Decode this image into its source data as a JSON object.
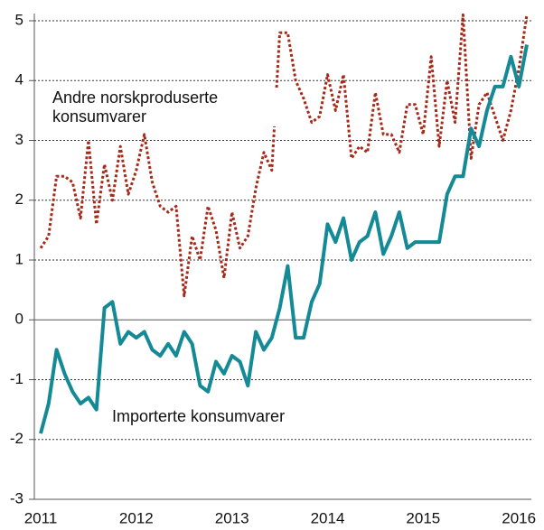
{
  "chart_data": {
    "type": "line",
    "categories": [
      "2011",
      null,
      null,
      null,
      null,
      null,
      null,
      null,
      null,
      null,
      null,
      null,
      "2012",
      null,
      null,
      null,
      null,
      null,
      null,
      null,
      null,
      null,
      null,
      null,
      "2013",
      null,
      null,
      null,
      null,
      null,
      null,
      null,
      null,
      null,
      null,
      null,
      "2014",
      null,
      null,
      null,
      null,
      null,
      null,
      null,
      null,
      null,
      null,
      null,
      "2015",
      null,
      null,
      null,
      null,
      null,
      null,
      null,
      null,
      null,
      null,
      null,
      "2016",
      null
    ],
    "series": [
      {
        "name": "Andre norskproduserte konsumvarer",
        "color": "#a52a1a",
        "dashed": true,
        "values": [
          1.2,
          1.4,
          2.4,
          2.4,
          2.3,
          1.7,
          3.0,
          1.6,
          2.6,
          2.0,
          2.9,
          2.1,
          2.5,
          3.1,
          2.3,
          1.9,
          1.8,
          1.9,
          0.4,
          1.4,
          1.0,
          1.9,
          1.5,
          0.7,
          1.8,
          1.2,
          1.4,
          2.2,
          2.8,
          2.5,
          4.8,
          4.8,
          4.0,
          3.7,
          3.3,
          3.4,
          4.1,
          3.5,
          4.1,
          2.7,
          2.9,
          2.8,
          3.8,
          3.1,
          3.1,
          2.8,
          3.6,
          3.6,
          3.1,
          4.4,
          2.9,
          4.0,
          3.3,
          5.1,
          2.7,
          3.6,
          3.8,
          3.4,
          3.0,
          3.5,
          4.2,
          5.1
        ]
      },
      {
        "name": "Importerte konsumvarer",
        "color": "#138a96",
        "dashed": false,
        "values": [
          -1.9,
          -1.4,
          -0.5,
          -0.9,
          -1.2,
          -1.4,
          -1.3,
          -1.5,
          0.2,
          0.3,
          -0.4,
          -0.2,
          -0.3,
          -0.2,
          -0.5,
          -0.6,
          -0.4,
          -0.6,
          -0.2,
          -0.4,
          -1.1,
          -1.2,
          -0.7,
          -0.9,
          -0.6,
          -0.7,
          -1.1,
          -0.2,
          -0.5,
          -0.3,
          0.2,
          0.9,
          -0.3,
          -0.3,
          0.3,
          0.6,
          1.6,
          1.3,
          1.7,
          1.0,
          1.3,
          1.4,
          1.8,
          1.1,
          1.4,
          1.8,
          1.2,
          1.3,
          1.3,
          1.3,
          1.3,
          2.1,
          2.4,
          2.4,
          3.2,
          2.9,
          3.5,
          3.9,
          3.9,
          4.4,
          3.9,
          4.6
        ]
      }
    ],
    "ylim": [
      -3,
      5
    ],
    "yticks": [
      -3,
      -2,
      -1,
      0,
      1,
      2,
      3,
      4,
      5
    ],
    "grid": true
  }
}
